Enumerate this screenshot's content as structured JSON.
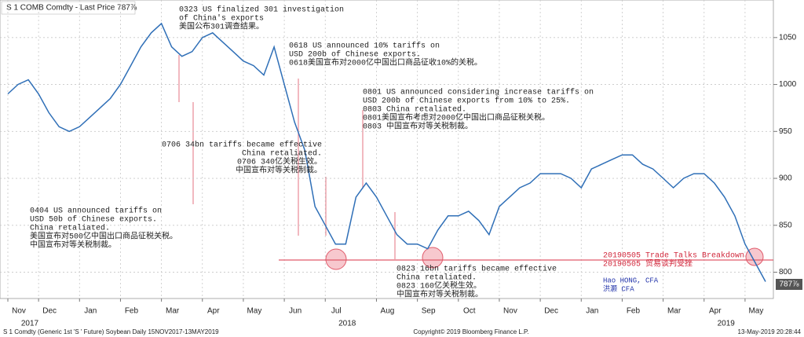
{
  "header": "S 1 COMB Comdty - Last Price 787⅞",
  "last_price_label": "787⅞",
  "footer_left": "S 1 Comdty (Generic 1st 'S ' Future) Soybean  Daily 15NOV2017-13MAY2019",
  "footer_center": "Copyright© 2019 Bloomberg Finance L.P.",
  "footer_right": "13-May-2019 20:28:44",
  "chart_data": {
    "type": "line",
    "color": "#2f6fb7",
    "categories": [
      "Nov",
      null,
      null,
      "Dec",
      null,
      null,
      null,
      "Jan",
      null,
      null,
      null,
      "Feb",
      null,
      null,
      null,
      "Mar",
      null,
      null,
      null,
      "Apr",
      null,
      null,
      null,
      "May",
      null,
      null,
      null,
      "Jun",
      null,
      null,
      null,
      "Jul",
      null,
      null,
      null,
      null,
      "Aug",
      null,
      null,
      null,
      "Sep",
      null,
      null,
      null,
      "Oct",
      null,
      null,
      null,
      "Nov",
      null,
      null,
      null,
      "Dec",
      null,
      null,
      null,
      "Jan",
      null,
      null,
      null,
      "Feb",
      null,
      null,
      null,
      "Mar",
      null,
      null,
      null,
      "Apr",
      null,
      null,
      null,
      "May",
      null,
      null
    ],
    "values": [
      990,
      1000,
      1005,
      990,
      970,
      955,
      950,
      955,
      965,
      975,
      985,
      1000,
      1020,
      1040,
      1055,
      1065,
      1040,
      1030,
      1035,
      1050,
      1055,
      1045,
      1035,
      1025,
      1020,
      1010,
      1040,
      1000,
      960,
      930,
      870,
      850,
      830,
      830,
      880,
      895,
      880,
      860,
      840,
      830,
      830,
      825,
      845,
      860,
      860,
      865,
      855,
      840,
      870,
      880,
      890,
      895,
      905,
      905,
      905,
      900,
      890,
      910,
      915,
      920,
      925,
      925,
      915,
      910,
      900,
      890,
      900,
      905,
      905,
      895,
      880,
      860,
      830,
      810,
      790
    ],
    "year_labels": [
      "2017",
      "2018",
      "2019"
    ],
    "ylim": [
      772,
      1090
    ],
    "yticks": [
      800,
      850,
      900,
      950,
      1000,
      1050
    ],
    "grid": true,
    "reference_line": {
      "value": 813,
      "color": "#e05a6a"
    },
    "annotations": [
      {
        "lines": [
          "0323 US finalized 301 investigation",
          "of China's exports",
          "美国公布301调查结果。"
        ]
      },
      {
        "lines": [
          "0618 US announced 10% tariffs on",
          "USD 200b of Chinese exports.",
          "0618美国宣布对2000亿中国出口商品征收10%的关税。"
        ]
      },
      {
        "lines": [
          "0801 US announced considering increase tariffs on",
          "USD 200b of Chinese exports from 10% to 25%.",
          "0803 China retaliated.",
          "0801美国宣布考虑对2000亿中国出口商品征税关税。",
          "0803 中国宣布对等关税制裁。"
        ]
      },
      {
        "lines": [
          "0706 34bn tariffs became effective",
          "China retaliated.",
          "0706 340亿关税生效。",
          "中国宣布对等关税制裁。"
        ]
      },
      {
        "lines": [
          "0404 US announced tariffs on",
          "USD 50b of Chinese exports.",
          "China retaliated.",
          "美国宣布对500亿中国出口商品征税关税。",
          "中国宣布对等关税制裁。"
        ]
      },
      {
        "lines": [
          "0823 16bn tariffs became effective",
          "China retaliated.",
          "0823 160亿关税生效。",
          "中国宣布对等关税制裁。"
        ]
      },
      {
        "lines": [
          "20190505 Trade Talks Breakdown",
          "20190505 贸易谈判受挫"
        ]
      },
      {
        "lines": [
          "Hao HONG, CFA",
          "洪灏 CFA"
        ]
      }
    ]
  }
}
